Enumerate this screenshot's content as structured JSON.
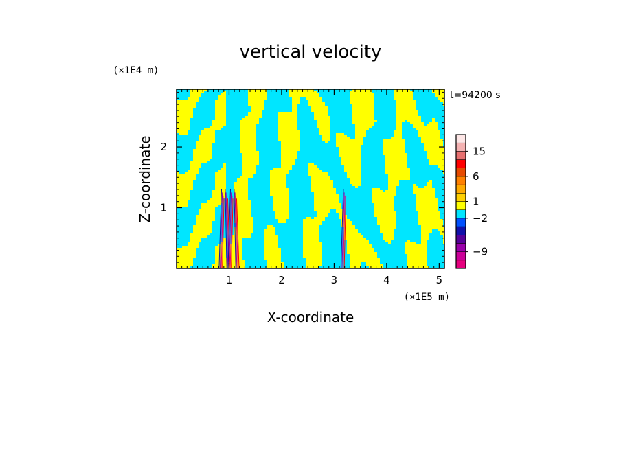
{
  "chart_data": {
    "type": "heatmap",
    "title": "vertical velocity",
    "xlabel": "X-coordinate",
    "ylabel": "Z-coordinate",
    "x_unit": "(×1E5 m)",
    "y_unit": "(×1E4 m)",
    "time_label": "t=94200 s",
    "xlim": [
      0,
      5.1
    ],
    "ylim": [
      0,
      2.95
    ],
    "x_ticks": [
      {
        "value": 1,
        "label": "1"
      },
      {
        "value": 2,
        "label": "2"
      },
      {
        "value": 3,
        "label": "3"
      },
      {
        "value": 4,
        "label": "4"
      },
      {
        "value": 5,
        "label": "5"
      }
    ],
    "y_ticks": [
      {
        "value": 1,
        "label": "1"
      },
      {
        "value": 2,
        "label": "2"
      }
    ],
    "colorbar": {
      "levels_bottom_to_top": [
        {
          "color": "#e6007e"
        },
        {
          "color": "#cc0099"
        },
        {
          "color": "#9900aa"
        },
        {
          "color": "#550099"
        },
        {
          "color": "#1010aa"
        },
        {
          "color": "#0050ff"
        },
        {
          "color": "#00e6ff"
        },
        {
          "color": "#ffff00"
        },
        {
          "color": "#ffd000"
        },
        {
          "color": "#ffaa00"
        },
        {
          "color": "#ff8000"
        },
        {
          "color": "#e64a00"
        },
        {
          "color": "#ff0000"
        },
        {
          "color": "#e87070"
        },
        {
          "color": "#f4b2b2"
        },
        {
          "color": "#fde6e6"
        }
      ],
      "labels": [
        {
          "text": "15",
          "level": 14
        },
        {
          "text": "6",
          "level": 11
        },
        {
          "text": "1",
          "level": 8
        },
        {
          "text": "−2",
          "level": 6
        },
        {
          "text": "−9",
          "level": 2
        }
      ]
    },
    "field": {
      "dominant_positive_color": "#ffff00",
      "dominant_negative_color": "#00e6ff",
      "strong_updraft_columns_x": [
        0.88,
        0.95,
        1.05,
        1.12,
        3.2
      ]
    }
  }
}
